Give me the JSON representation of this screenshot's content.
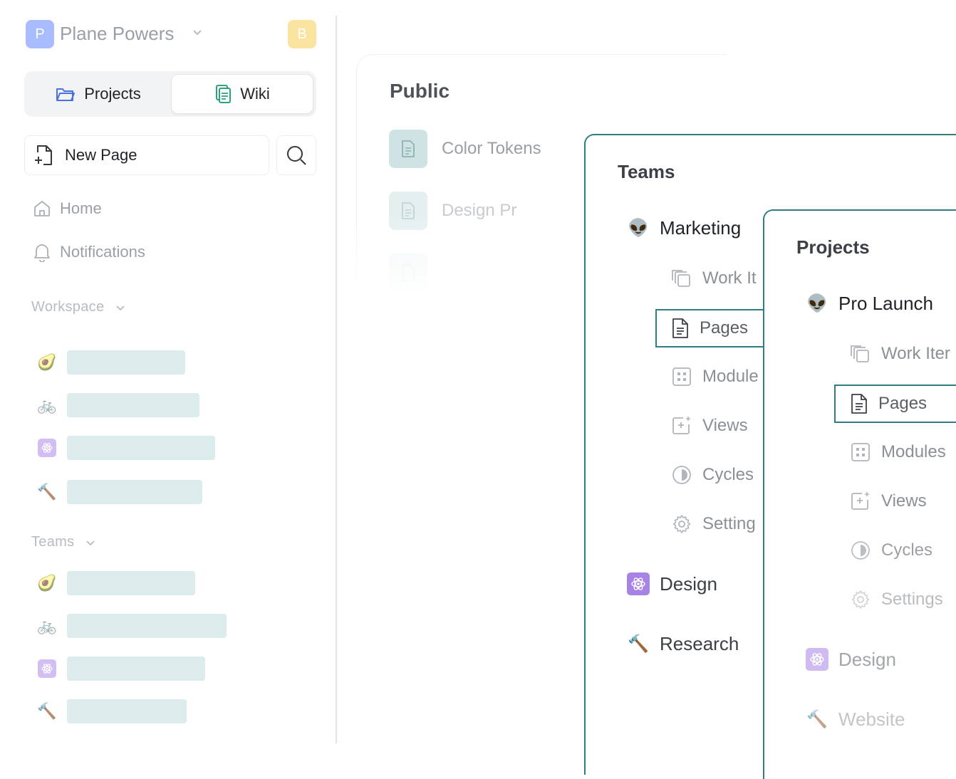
{
  "workspace": {
    "initial": "P",
    "name": "Plane Powers",
    "user_initial": "B"
  },
  "tabs": {
    "projects": "Projects",
    "wiki": "Wiki"
  },
  "actions": {
    "new_page": "New Page"
  },
  "nav": {
    "home": "Home",
    "notifications": "Notifications"
  },
  "sections": {
    "workspace": "Workspace",
    "teams": "Teams"
  },
  "colors": {
    "accent": "#2f7f82",
    "placeholder": "#dcebeb",
    "avatar_p": "#a9bcff",
    "avatar_b": "#fbe3a0",
    "purple": "#a883e6"
  },
  "public": {
    "title": "Public",
    "items": [
      "Color Tokens",
      "Design Pr"
    ]
  },
  "teams_card": {
    "title": "Teams",
    "group": "Marketing",
    "sub_items": [
      "Work It",
      "Pages",
      "Module",
      "Views",
      "Cycles",
      "Setting"
    ],
    "others": [
      "Design",
      "Research"
    ]
  },
  "projects_card": {
    "title": "Projects",
    "group": "Pro Launch",
    "sub_items": [
      "Work Iter",
      "Pages",
      "Modules",
      "Views",
      "Cycles",
      "Settings"
    ],
    "others": [
      "Design",
      "Website"
    ]
  }
}
